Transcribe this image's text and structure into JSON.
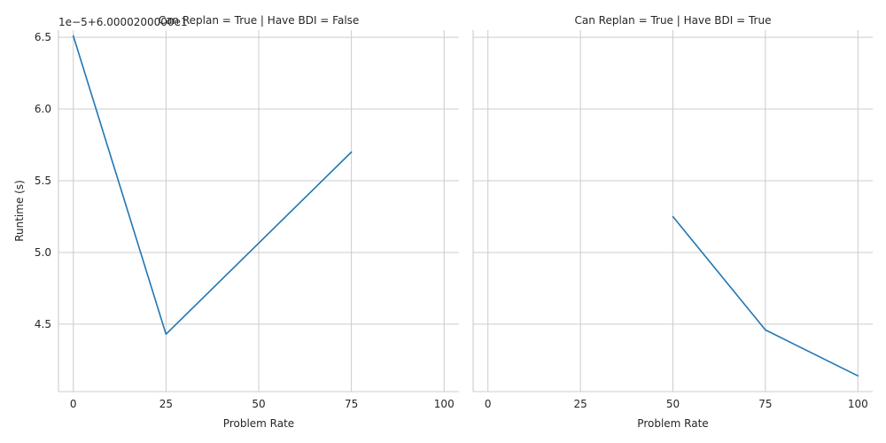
{
  "chart_data": {
    "type": "line",
    "y_offset_label": "1e−5+6.0000200000e1",
    "ylabel": "Runtime (s)",
    "xlabel": "Problem Rate",
    "x_ticks": [
      0,
      25,
      50,
      75,
      100
    ],
    "y_ticks": [
      4.5,
      5.0,
      5.5,
      6.0,
      6.5
    ],
    "xlim": [
      -4,
      104
    ],
    "ylim": [
      4.03,
      6.55
    ],
    "grid": true,
    "line_color": "#1f77b4",
    "panels": [
      {
        "title": "Can Replan = True | Have BDI = False",
        "series": [
          {
            "x": [
              0,
              25,
              75
            ],
            "y": [
              6.51,
              4.43,
              5.7
            ]
          }
        ]
      },
      {
        "title": "Can Replan = True | Have BDI = True",
        "series": [
          {
            "x": [
              50,
              75,
              100
            ],
            "y": [
              5.25,
              4.46,
              4.14
            ]
          }
        ]
      }
    ]
  }
}
